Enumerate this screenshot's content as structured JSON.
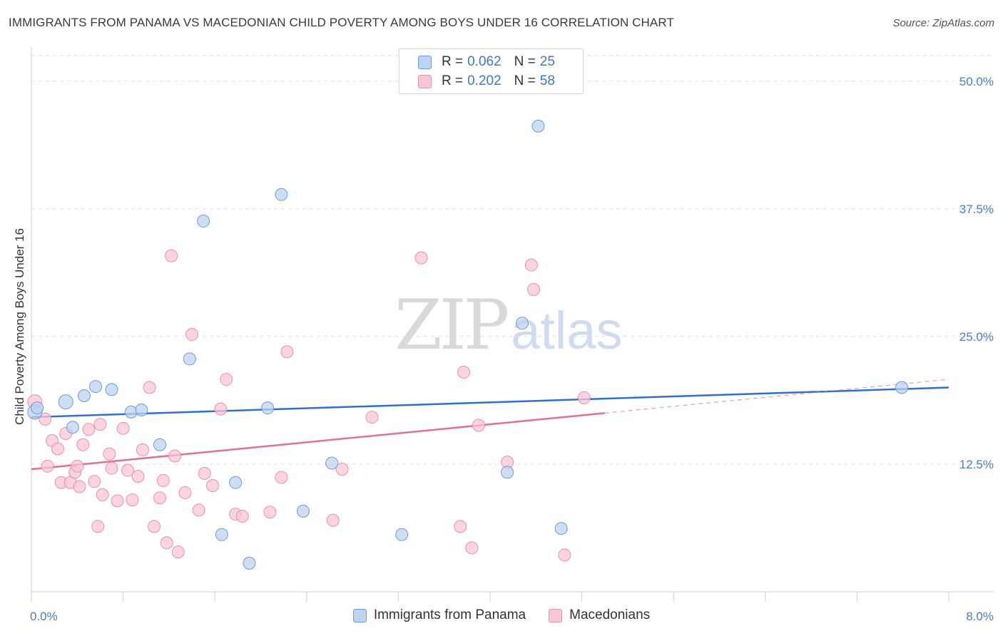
{
  "title": "IMMIGRANTS FROM PANAMA VS MACEDONIAN CHILD POVERTY AMONG BOYS UNDER 16 CORRELATION CHART",
  "source": "Source: ZipAtlas.com",
  "watermark": {
    "zip": "ZIP",
    "atlas": "atlas"
  },
  "legend": {
    "rows": [
      {
        "r_label": "R =",
        "r_value": "0.062",
        "n_label": "N =",
        "n_value": "25"
      },
      {
        "r_label": "R =",
        "r_value": "0.202",
        "n_label": "N =",
        "n_value": "58"
      }
    ]
  },
  "colors": {
    "blue_fill": "#bcd3f2",
    "blue_stroke": "#6f9bd8",
    "blue_line": "#2f6fcf",
    "pink_fill": "#f9c6d5",
    "pink_stroke": "#e891ad",
    "pink_line": "#e0709a",
    "tick_text": "#4a7cc7",
    "grid": "#dddddd"
  },
  "chart_data": {
    "type": "scatter",
    "title": "IMMIGRANTS FROM PANAMA VS MACEDONIAN CHILD POVERTY AMONG BOYS UNDER 16 CORRELATION CHART",
    "xlabel": "",
    "ylabel": "Child Poverty Among Boys Under 16",
    "xlim": [
      0,
      8
    ],
    "ylim": [
      0,
      52.5
    ],
    "x_tick_labels": [
      {
        "value": 0,
        "label": "0.0%"
      },
      {
        "value": 8,
        "label": "8.0%"
      }
    ],
    "y_ticks": [
      {
        "value": 12.5,
        "label": "12.5%"
      },
      {
        "value": 25,
        "label": "25.0%"
      },
      {
        "value": 37.5,
        "label": "37.5%"
      },
      {
        "value": 50,
        "label": "50.0%"
      }
    ],
    "grid": true,
    "legend_position": "top-center",
    "series": [
      {
        "name": "Immigrants from Panama",
        "color": "#6f9bd8",
        "points": [
          [
            0.03,
            17.6
          ],
          [
            0.05,
            18.0
          ],
          [
            0.36,
            16.1
          ],
          [
            0.46,
            19.2
          ],
          [
            0.56,
            20.1
          ],
          [
            0.7,
            19.8
          ],
          [
            0.87,
            17.6
          ],
          [
            0.96,
            17.8
          ],
          [
            1.12,
            14.4
          ],
          [
            1.38,
            22.8
          ],
          [
            1.5,
            36.3
          ],
          [
            1.66,
            5.6
          ],
          [
            1.78,
            10.7
          ],
          [
            1.9,
            2.8
          ],
          [
            2.06,
            18.0
          ],
          [
            2.18,
            38.9
          ],
          [
            2.37,
            7.9
          ],
          [
            2.62,
            12.6
          ],
          [
            3.23,
            5.6
          ],
          [
            4.15,
            11.7
          ],
          [
            4.28,
            26.3
          ],
          [
            4.42,
            45.6
          ],
          [
            4.62,
            6.2
          ],
          [
            7.59,
            20.0
          ],
          [
            0.3,
            18.6
          ]
        ],
        "trend": {
          "x": [
            0,
            8
          ],
          "y": [
            17.1,
            20.0
          ]
        }
      },
      {
        "name": "Macedonians",
        "color": "#e891ad",
        "points": [
          [
            0.03,
            18.6
          ],
          [
            0.12,
            16.9
          ],
          [
            0.14,
            12.3
          ],
          [
            0.18,
            14.8
          ],
          [
            0.23,
            14.0
          ],
          [
            0.26,
            10.7
          ],
          [
            0.3,
            15.5
          ],
          [
            0.34,
            10.7
          ],
          [
            0.38,
            11.7
          ],
          [
            0.4,
            12.3
          ],
          [
            0.42,
            10.3
          ],
          [
            0.45,
            14.4
          ],
          [
            0.5,
            15.9
          ],
          [
            0.55,
            10.8
          ],
          [
            0.58,
            6.4
          ],
          [
            0.62,
            9.5
          ],
          [
            0.68,
            13.5
          ],
          [
            0.7,
            12.1
          ],
          [
            0.75,
            8.9
          ],
          [
            0.8,
            16.0
          ],
          [
            0.84,
            11.9
          ],
          [
            0.88,
            9.0
          ],
          [
            0.93,
            11.3
          ],
          [
            0.97,
            13.9
          ],
          [
            1.03,
            20.0
          ],
          [
            1.07,
            6.4
          ],
          [
            1.12,
            9.2
          ],
          [
            1.15,
            10.9
          ],
          [
            1.18,
            4.8
          ],
          [
            1.22,
            32.9
          ],
          [
            1.28,
            3.9
          ],
          [
            1.34,
            9.7
          ],
          [
            1.4,
            25.2
          ],
          [
            1.46,
            8.0
          ],
          [
            1.51,
            11.6
          ],
          [
            1.58,
            10.4
          ],
          [
            1.65,
            17.9
          ],
          [
            1.7,
            20.8
          ],
          [
            1.78,
            7.6
          ],
          [
            1.84,
            7.4
          ],
          [
            2.08,
            7.8
          ],
          [
            2.18,
            11.2
          ],
          [
            2.23,
            23.5
          ],
          [
            2.63,
            7.0
          ],
          [
            2.71,
            12.0
          ],
          [
            2.97,
            17.1
          ],
          [
            3.4,
            32.7
          ],
          [
            3.74,
            6.4
          ],
          [
            3.77,
            21.5
          ],
          [
            3.84,
            4.3
          ],
          [
            3.9,
            16.3
          ],
          [
            4.15,
            12.7
          ],
          [
            4.36,
            32.0
          ],
          [
            4.38,
            29.6
          ],
          [
            4.65,
            3.6
          ],
          [
            4.82,
            19.0
          ],
          [
            1.25,
            13.3
          ],
          [
            0.6,
            16.4
          ]
        ],
        "trend": {
          "x": [
            0,
            5.0
          ],
          "y": [
            12.0,
            17.5
          ]
        },
        "trend_dashed": {
          "x": [
            5.0,
            8
          ],
          "y": [
            17.5,
            20.8
          ]
        }
      }
    ]
  },
  "bottom_legend": [
    "Immigrants from Panama",
    "Macedonians"
  ]
}
